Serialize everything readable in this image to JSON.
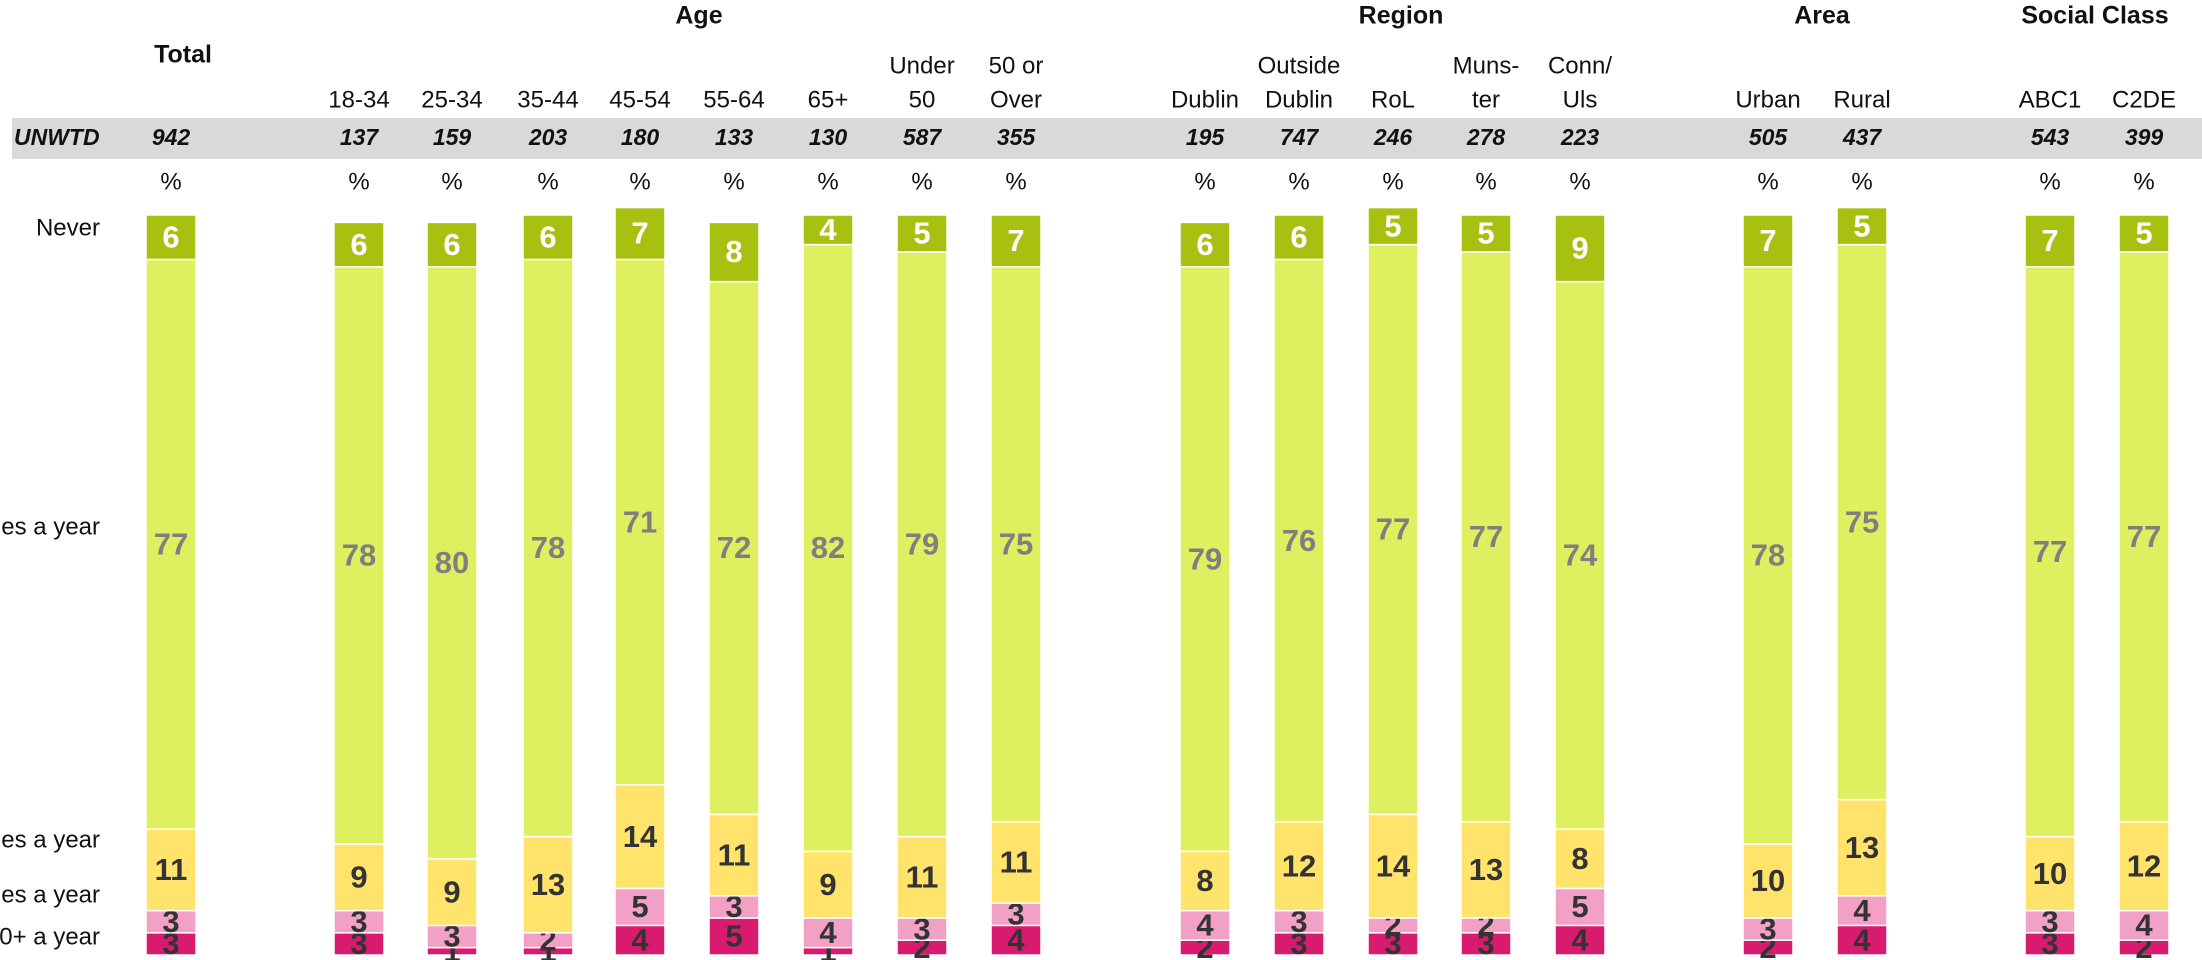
{
  "chart_data": {
    "type": "stacked_bar",
    "group_headers": [
      "Total",
      "Age",
      "Region",
      "Area",
      "Social Class"
    ],
    "row_label": "UNWTD",
    "percent_symbol": "%",
    "categories": [
      [
        "Total"
      ],
      [
        "18-34"
      ],
      [
        "25-34"
      ],
      [
        "35-44"
      ],
      [
        "45-54"
      ],
      [
        "55-64"
      ],
      [
        "65+"
      ],
      [
        "Under",
        "50"
      ],
      [
        "50 or",
        "Over"
      ],
      [
        "Dublin"
      ],
      [
        "Outside",
        "Dublin"
      ],
      [
        "RoL"
      ],
      [
        "Muns-",
        "ter"
      ],
      [
        "Conn/",
        "Uls"
      ],
      [
        "Urban"
      ],
      [
        "Rural"
      ],
      [
        "ABC1"
      ],
      [
        "C2DE"
      ]
    ],
    "unwtd": [
      942,
      137,
      159,
      203,
      180,
      133,
      130,
      587,
      355,
      195,
      747,
      246,
      278,
      223,
      505,
      437,
      543,
      399
    ],
    "ylim": [
      0,
      100
    ],
    "series": [
      {
        "name": "0+ a year",
        "color": "#d81b6e",
        "values": [
          3,
          3,
          1,
          1,
          4,
          5,
          1,
          2,
          4,
          2,
          3,
          3,
          3,
          4,
          2,
          4,
          3,
          2
        ]
      },
      {
        "name": "es a year",
        "color": "#f2a0c6",
        "values": [
          3,
          3,
          3,
          2,
          5,
          3,
          4,
          3,
          3,
          4,
          3,
          2,
          2,
          5,
          3,
          4,
          3,
          4
        ]
      },
      {
        "name": "es a year",
        "color": "#ffe36a",
        "values": [
          11,
          9,
          9,
          13,
          14,
          11,
          9,
          11,
          11,
          8,
          12,
          14,
          13,
          8,
          10,
          13,
          10,
          12
        ]
      },
      {
        "name": "es a year",
        "color": "#def060",
        "values": [
          77,
          78,
          80,
          78,
          71,
          72,
          82,
          79,
          75,
          79,
          76,
          77,
          77,
          74,
          78,
          75,
          77,
          77
        ]
      },
      {
        "name": "Never",
        "color": "#a8c010",
        "values": [
          6,
          6,
          6,
          6,
          7,
          8,
          4,
          5,
          7,
          6,
          6,
          5,
          5,
          9,
          7,
          5,
          7,
          5
        ]
      }
    ]
  }
}
